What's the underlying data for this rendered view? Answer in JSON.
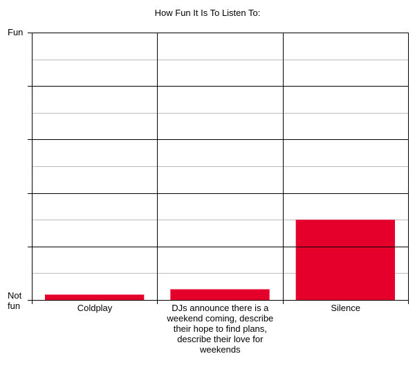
{
  "chart_data": {
    "type": "bar",
    "title": "How Fun It Is To Listen To:",
    "xlabel": "",
    "ylabel": "",
    "y_top_label": "Fun",
    "y_bottom_label": "Not fun",
    "categories": [
      "Coldplay",
      "DJs announce there is a weekend coming, describe their hope to find plans, describe their love for weekends",
      "Silence"
    ],
    "values": [
      0.2,
      0.4,
      3.0
    ],
    "ylim": [
      0,
      10
    ],
    "grid": true,
    "bar_color": "#E4002B"
  }
}
